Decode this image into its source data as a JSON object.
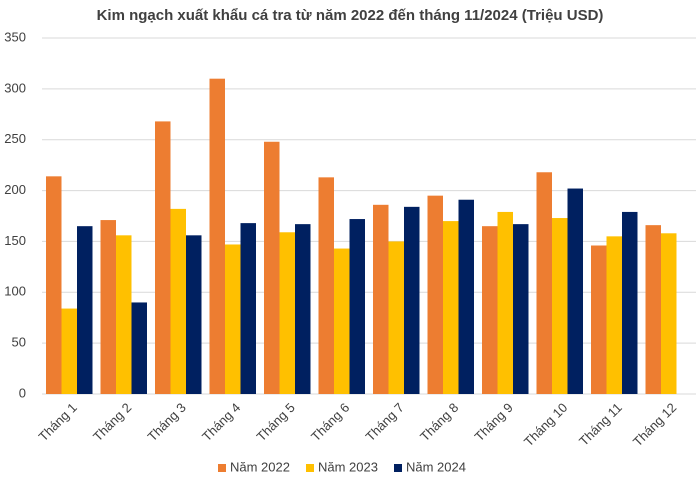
{
  "chart_data": {
    "type": "bar",
    "title": "Kim ngạch xuất khẩu cá tra từ năm 2022 đến tháng 11/2024 (Triệu USD)",
    "categories": [
      "Tháng 1",
      "Tháng 2",
      "Tháng 3",
      "Tháng 4",
      "Tháng 5",
      "Tháng 6",
      "Tháng 7",
      "Tháng 8",
      "Tháng 9",
      "Tháng 10",
      "Tháng 11",
      "Tháng 12"
    ],
    "series": [
      {
        "name": "Năm 2022",
        "color": "#ed7d31",
        "values": [
          214,
          171,
          268,
          310,
          248,
          213,
          186,
          195,
          165,
          218,
          146,
          166
        ]
      },
      {
        "name": "Năm 2023",
        "color": "#ffc000",
        "values": [
          84,
          156,
          182,
          147,
          159,
          143,
          150,
          170,
          179,
          173,
          155,
          158
        ]
      },
      {
        "name": "Năm 2024",
        "color": "#002060",
        "values": [
          165,
          90,
          156,
          168,
          167,
          172,
          184,
          191,
          167,
          202,
          179,
          null
        ]
      }
    ],
    "ylim": [
      0,
      350
    ],
    "yticks": [
      0,
      50,
      100,
      150,
      200,
      250,
      300,
      350
    ],
    "grid": true,
    "legend": "bottom"
  }
}
